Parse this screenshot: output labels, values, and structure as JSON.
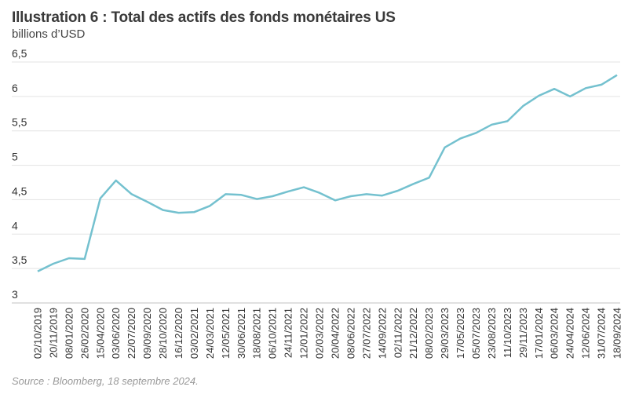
{
  "title": "Illustration 6 : Total des actifs des fonds monétaires US",
  "subtitle": "billions d’USD",
  "source": "Source : Bloomberg, 18 septembre 2024.",
  "chart_data": {
    "type": "line",
    "title": "Illustration 6 : Total des actifs des fonds monétaires US",
    "ylabel": "billions d’USD",
    "xlabel": "",
    "ylim": [
      3,
      6.5
    ],
    "yticks": [
      "3",
      "3,5",
      "4",
      "4,5",
      "5",
      "5,5",
      "6",
      "6,5"
    ],
    "ytick_values": [
      3,
      3.5,
      4,
      4.5,
      5,
      5.5,
      6,
      6.5
    ],
    "grid": true,
    "line_color": "#74c1cf",
    "categories": [
      "02/10/2019",
      "20/11/2019",
      "08/01/2020",
      "26/02/2020",
      "15/04/2020",
      "03/06/2020",
      "22/07/2020",
      "09/09/2020",
      "28/10/2020",
      "16/12/2020",
      "03/02/2021",
      "24/03/2021",
      "12/05/2021",
      "30/06/2021",
      "18/08/2021",
      "06/10/2021",
      "24/11/2021",
      "12/01/2022",
      "02/03/2022",
      "20/04/2022",
      "08/06/2022",
      "27/07/2022",
      "14/09/2022",
      "02/11/2022",
      "21/12/2022",
      "08/02/2023",
      "29/03/2023",
      "17/05/2023",
      "05/07/2023",
      "23/08/2023",
      "11/10/2023",
      "29/11/2023",
      "17/01/2024",
      "06/03/2024",
      "24/04/2024",
      "12/06/2024",
      "31/07/2024",
      "18/09/2024"
    ],
    "values": [
      3.46,
      3.57,
      3.65,
      3.64,
      4.52,
      4.78,
      4.58,
      4.47,
      4.35,
      4.31,
      4.32,
      4.41,
      4.58,
      4.57,
      4.51,
      4.55,
      4.62,
      4.68,
      4.6,
      4.49,
      4.55,
      4.58,
      4.56,
      4.63,
      4.73,
      4.82,
      5.26,
      5.39,
      5.47,
      5.59,
      5.64,
      5.86,
      6.01,
      6.11,
      6.0,
      6.12,
      6.17,
      6.31
    ]
  }
}
